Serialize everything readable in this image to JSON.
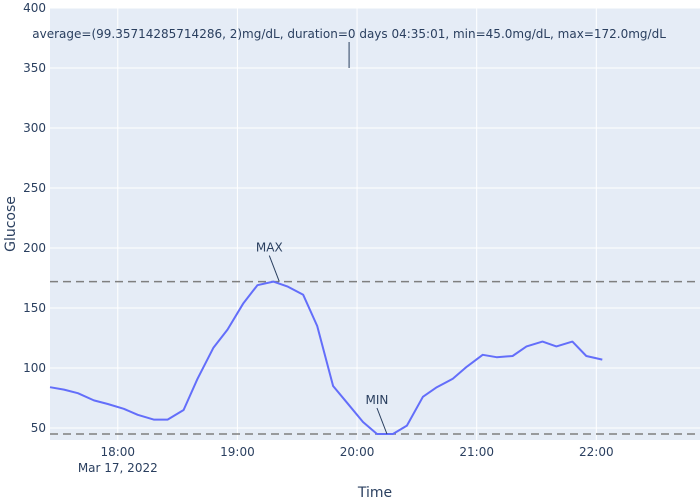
{
  "chart_data": {
    "type": "line",
    "title": "",
    "xlabel": "Time",
    "ylabel": "Glucose",
    "ylim": [
      40,
      400
    ],
    "xlim": [
      "2022-03-17T17:26",
      "2022-03-17T22:52"
    ],
    "y_ticks": [
      50,
      100,
      150,
      200,
      250,
      300,
      350,
      400
    ],
    "x_ticks": [
      {
        "time": "2022-03-17T18:00",
        "label": "18:00"
      },
      {
        "time": "2022-03-17T19:00",
        "label": "19:00"
      },
      {
        "time": "2022-03-17T20:00",
        "label": "20:00"
      },
      {
        "time": "2022-03-17T21:00",
        "label": "21:00"
      },
      {
        "time": "2022-03-17T22:00",
        "label": "22:00"
      }
    ],
    "date_label": "Mar 17, 2022",
    "grid": true,
    "colors": {
      "plot_bg": "#e5ecf6",
      "grid": "#ffffff",
      "line": "#636efa",
      "hline": "#7f7f7f",
      "text": "#2a3f5f"
    },
    "series": [
      {
        "x": [
          "17:26",
          "17:33",
          "17:40",
          "17:48",
          "17:55",
          "18:03",
          "18:10",
          "18:18",
          "18:25",
          "18:33",
          "18:40",
          "18:48",
          "18:55",
          "19:03",
          "19:10",
          "19:18",
          "19:25",
          "19:33",
          "19:40",
          "19:48",
          "19:55",
          "20:03",
          "20:10",
          "20:18",
          "20:25",
          "20:33",
          "20:40",
          "20:48",
          "20:55",
          "21:03",
          "21:10",
          "21:18",
          "21:25",
          "21:33",
          "21:40",
          "21:48",
          "21:55",
          "22:03"
        ],
        "y": [
          84,
          82,
          79,
          73,
          70,
          66,
          61,
          57,
          57,
          65,
          91,
          117,
          132,
          154,
          169,
          172,
          168,
          161,
          135,
          85,
          71,
          55,
          45,
          45,
          52,
          76,
          84,
          91,
          101,
          111,
          109,
          110,
          118,
          122,
          118,
          122,
          110,
          107
        ]
      }
    ],
    "hlines": [
      {
        "y": 172.0,
        "style": "dashed"
      },
      {
        "y": 45.0,
        "style": "dashed"
      }
    ],
    "annotations": [
      {
        "text": "MAX",
        "x": "19:21",
        "y": 172
      },
      {
        "text": "MIN",
        "x": "20:15",
        "y": 45
      },
      {
        "text": "average=(99.35714285714286, 2)mg/dL, duration=0 days 04:35:01, min=45.0mg/dL, max=172.0mg/dL",
        "x": "19:56",
        "y": 350
      }
    ]
  }
}
